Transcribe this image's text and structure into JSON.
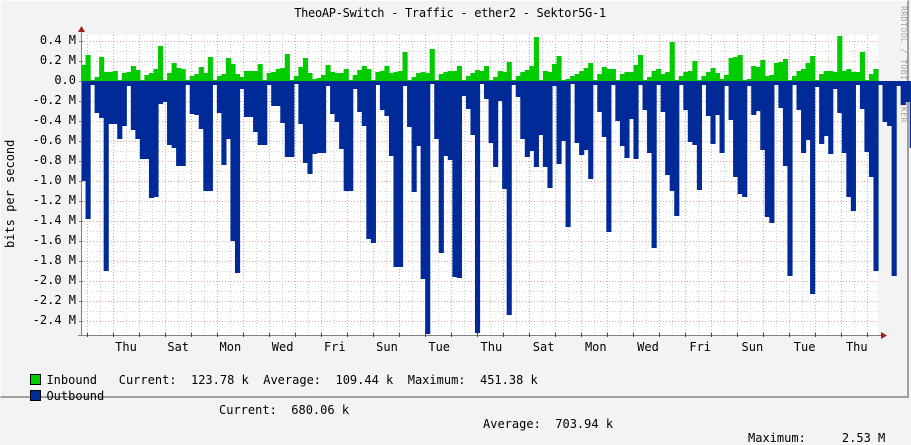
{
  "chart_data": {
    "type": "area",
    "title": "TheoAP-Switch - Traffic - ether2 - Sektor5G-1",
    "xlabel": "",
    "ylabel": "bits per second",
    "watermark": "RRDTOOL / TOBI OETIKER",
    "ylim": [
      -2.5,
      0.45
    ],
    "yticks": [
      "0.4 M",
      "0.2 M",
      "0.0",
      "-0.2 M",
      "-0.4 M",
      "-0.6 M",
      "-0.8 M",
      "-1.0 M",
      "-1.2 M",
      "-1.4 M",
      "-1.6 M",
      "-1.8 M",
      "-2.0 M",
      "-2.2 M",
      "-2.4 M"
    ],
    "ytick_values": [
      0.4,
      0.2,
      0.0,
      -0.2,
      -0.4,
      -0.6,
      -0.8,
      -1.0,
      -1.2,
      -1.4,
      -1.6,
      -1.8,
      -2.0,
      -2.2,
      -2.4
    ],
    "xticks": [
      "Thu",
      "Sat",
      "Mon",
      "Wed",
      "Fri",
      "Sun",
      "Tue",
      "Thu",
      "Sat",
      "Mon",
      "Wed",
      "Fri",
      "Sun",
      "Tue",
      "Thu"
    ],
    "grid": true,
    "legend_position": "bottom",
    "series": [
      {
        "name": "Inbound",
        "color": "#00cc00",
        "unit": "M bits/s",
        "values": [
          0.16,
          0.26,
          0.01,
          0.04,
          0.24,
          0.09,
          0.09,
          0.1,
          0.01,
          0.08,
          0.09,
          0.15,
          0.11,
          0.01,
          0.06,
          0.08,
          0.12,
          0.35,
          0.01,
          0.08,
          0.18,
          0.13,
          0.12,
          0.01,
          0.05,
          0.07,
          0.14,
          0.08,
          0.24,
          0.01,
          0.05,
          0.07,
          0.23,
          0.17,
          0.07,
          0.04,
          0.1,
          0.1,
          0.1,
          0.17,
          0.01,
          0.08,
          0.09,
          0.12,
          0.13,
          0.27,
          0.01,
          0.05,
          0.14,
          0.23,
          0.08,
          0.02,
          0.03,
          0.06,
          0.16,
          0.09,
          0.08,
          0.08,
          0.12,
          0.01,
          0.06,
          0.11,
          0.15,
          0.12,
          0.01,
          0.09,
          0.1,
          0.15,
          0.08,
          0.09,
          0.1,
          0.29,
          0.01,
          0.04,
          0.08,
          0.09,
          0.08,
          0.32,
          0.01,
          0.07,
          0.09,
          0.1,
          0.1,
          0.15,
          0.01,
          0.05,
          0.08,
          0.11,
          0.1,
          0.15,
          0.01,
          0.04,
          0.1,
          0.09,
          0.19,
          0.01,
          0.05,
          0.09,
          0.11,
          0.15,
          0.44,
          0.01,
          0.1,
          0.09,
          0.17,
          0.25,
          0.01,
          0.02,
          0.05,
          0.07,
          0.1,
          0.13,
          0.18,
          0.01,
          0.07,
          0.14,
          0.12,
          0.12,
          0.01,
          0.07,
          0.09,
          0.09,
          0.16,
          0.26,
          0.01,
          0.04,
          0.1,
          0.12,
          0.07,
          0.09,
          0.39,
          0.01,
          0.05,
          0.09,
          0.1,
          0.2,
          0.01,
          0.05,
          0.09,
          0.13,
          0.08,
          0.02,
          0.06,
          0.23,
          0.24,
          0.26,
          0.01,
          0.02,
          0.15,
          0.14,
          0.21,
          0.05,
          0.06,
          0.18,
          0.19,
          0.22,
          0.01,
          0.05,
          0.1,
          0.12,
          0.18,
          0.25,
          0.01,
          0.07,
          0.1,
          0.1,
          0.09,
          0.45,
          0.1,
          0.12,
          0.09,
          0.09,
          0.29,
          0.01,
          0.07,
          0.12
        ]
      },
      {
        "name": "Outbound",
        "color": "#002a97",
        "unit": "M bits/s",
        "values": [
          -1.0,
          -1.38,
          -0.04,
          -0.32,
          -0.37,
          -1.9,
          -0.43,
          -0.43,
          -0.58,
          -0.45,
          -0.05,
          -0.49,
          -0.58,
          -0.78,
          -0.78,
          -1.17,
          -1.16,
          -0.23,
          -0.21,
          -0.64,
          -0.67,
          -0.85,
          -0.85,
          -0.04,
          -0.33,
          -0.34,
          -0.48,
          -1.1,
          -1.1,
          -0.04,
          -0.32,
          -0.84,
          -0.58,
          -1.6,
          -1.92,
          -0.08,
          -0.36,
          -0.36,
          -0.51,
          -0.64,
          -0.64,
          -0.04,
          -0.25,
          -0.25,
          -0.42,
          -0.76,
          -0.76,
          -0.03,
          -0.43,
          -0.82,
          -0.93,
          -0.73,
          -0.72,
          -0.72,
          -0.05,
          -0.33,
          -0.41,
          -0.68,
          -1.1,
          -1.1,
          -0.08,
          -0.31,
          -0.45,
          -1.58,
          -1.62,
          -0.04,
          -0.29,
          -0.35,
          -0.75,
          -1.86,
          -1.86,
          -0.05,
          -0.46,
          -1.11,
          -0.65,
          -1.98,
          -2.53,
          -0.03,
          -0.58,
          -1.72,
          -0.75,
          -0.79,
          -1.96,
          -1.97,
          -0.15,
          -0.28,
          -0.54,
          -2.52,
          -0.03,
          -0.18,
          -0.62,
          -0.86,
          -0.2,
          -1.08,
          -2.34,
          -0.04,
          -0.16,
          -0.58,
          -0.76,
          -0.7,
          -0.86,
          -0.54,
          -0.86,
          -1.07,
          -0.05,
          -0.83,
          -0.6,
          -1.46,
          -0.03,
          -0.62,
          -0.74,
          -0.69,
          -0.98,
          -0.04,
          -0.31,
          -0.56,
          -1.51,
          -0.04,
          -0.4,
          -0.65,
          -0.77,
          -0.38,
          -0.78,
          -0.04,
          -0.29,
          -0.72,
          -1.67,
          -0.04,
          -0.31,
          -0.94,
          -1.1,
          -1.35,
          -0.04,
          -0.29,
          -0.61,
          -0.64,
          -1.09,
          -0.04,
          -0.35,
          -0.63,
          -0.34,
          -0.72,
          -0.05,
          -0.39,
          -0.96,
          -1.13,
          -1.16,
          -0.05,
          -0.34,
          -0.3,
          -0.69,
          -1.36,
          -1.42,
          -0.04,
          -0.27,
          -0.85,
          -1.95,
          -0.04,
          -0.29,
          -0.72,
          -0.59,
          -2.13,
          -0.06,
          -0.63,
          -0.55,
          -0.73,
          -0.08,
          -0.32,
          -0.72,
          -1.16,
          -1.3,
          -0.04,
          -0.28,
          -0.71,
          -0.96,
          -1.9,
          -0.04,
          -0.41,
          -0.45,
          -1.95,
          -0.05,
          -0.24,
          -0.21,
          -0.67
        ]
      }
    ]
  },
  "legend": {
    "inbound": {
      "label": "Inbound",
      "current_label": "Current:",
      "current": "123.78 k",
      "average_label": "Average:",
      "average": "109.44 k",
      "maximum_label": "Maximum:",
      "maximum": "451.38 k"
    },
    "outbound": {
      "label": "Outbound",
      "current_label": "Current:",
      "current": "680.06 k",
      "average_label": "Average:",
      "average": "703.94 k",
      "maximum_label": "Maximum:",
      "maximum": "2.53 M"
    }
  }
}
